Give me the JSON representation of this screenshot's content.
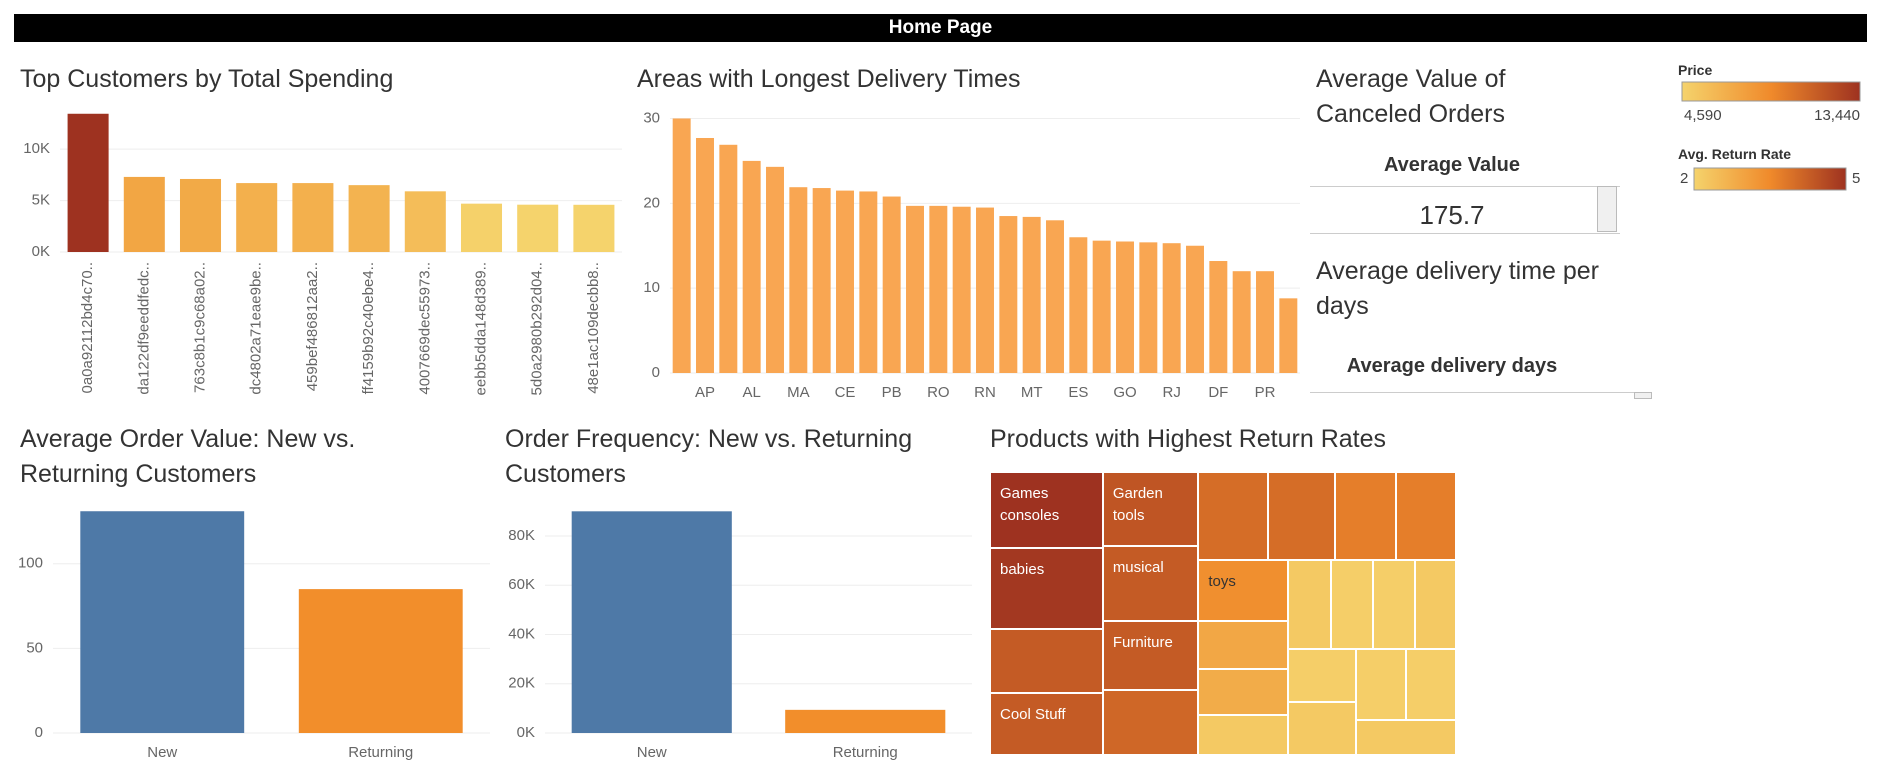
{
  "header": {
    "title": "Home Page"
  },
  "chart_data": [
    {
      "type": "bar",
      "title": "Top Customers by Total Spending",
      "categories": [
        "0a0a92112bd4c70..",
        "da122df9eeddfedc..",
        "763c8b1c9c68a02..",
        "dc4802a71eae9be..",
        "459bef486812aa2..",
        "ff4159b92c40ebe4..",
        "4007669dec55973..",
        "eebb5dda148d389..",
        "5d0a2980b292d04..",
        "48e1ac109decbb8.."
      ],
      "values": [
        13440,
        7300,
        7100,
        6700,
        6700,
        6500,
        5900,
        4700,
        4600,
        4590
      ],
      "ylim": [
        0,
        14000
      ],
      "yticks": [
        {
          "value": 0,
          "label": "0K"
        },
        {
          "value": 5000,
          "label": "5K"
        },
        {
          "value": 10000,
          "label": "10K"
        }
      ],
      "grid": true
    },
    {
      "type": "bar",
      "title": "Areas with Longest Delivery Times",
      "categories": [
        null,
        "AP",
        null,
        "AL",
        null,
        "MA",
        null,
        "CE",
        null,
        "PB",
        null,
        "RO",
        null,
        "RN",
        null,
        "MT",
        null,
        "ES",
        null,
        "GO",
        null,
        "RJ",
        null,
        "DF",
        null,
        "PR",
        null
      ],
      "values": [
        30,
        27.7,
        26.9,
        25,
        24.3,
        21.9,
        21.8,
        21.5,
        21.4,
        20.8,
        19.7,
        19.7,
        19.6,
        19.5,
        18.5,
        18.4,
        18,
        16,
        15.6,
        15.5,
        15.4,
        15.3,
        15,
        13.2,
        12,
        12,
        8.8
      ],
      "color": "#f9a652",
      "ylim": [
        0,
        31
      ],
      "yticks": [
        0,
        10,
        20,
        30
      ],
      "grid": true
    },
    {
      "type": "bar",
      "title": "Average Order Value: New vs. Returning Customers",
      "categories": [
        "New",
        "Returning"
      ],
      "values": [
        131,
        85
      ],
      "colors": [
        "#4e79a7",
        "#f28e2b"
      ],
      "ylim": [
        0,
        140
      ],
      "yticks": [
        0,
        50,
        100
      ],
      "grid": true
    },
    {
      "type": "bar",
      "title": "Order Frequency: New vs. Returning Customers",
      "categories": [
        "New",
        "Returning"
      ],
      "values": [
        90000,
        9400
      ],
      "colors": [
        "#4e79a7",
        "#f28e2b"
      ],
      "ylim": [
        0,
        95000
      ],
      "yticks": [
        {
          "value": 0,
          "label": "0K"
        },
        {
          "value": 20000,
          "label": "20K"
        },
        {
          "value": 40000,
          "label": "40K"
        },
        {
          "value": 60000,
          "label": "60K"
        },
        {
          "value": 80000,
          "label": "80K"
        }
      ],
      "grid": true
    },
    {
      "type": "treemap",
      "title": "Products with Highest Return Rates",
      "labels": [
        "Games consoles",
        "babies",
        null,
        "Cool Stuff",
        "Garden tools",
        "musical",
        "Furniture",
        null,
        null,
        null,
        null,
        null,
        "toys",
        null,
        null,
        null,
        null,
        null,
        null,
        null,
        null,
        null,
        null,
        null,
        null
      ],
      "sizes": [
        60,
        63,
        50,
        49,
        49,
        50,
        46,
        43,
        43,
        41,
        37,
        37,
        38,
        30,
        29,
        25,
        26,
        26,
        26,
        25,
        25,
        25,
        25,
        25,
        24
      ],
      "rates": [
        5,
        4.9,
        4.3,
        4.3,
        4.4,
        4.3,
        4.3,
        4.1,
        4,
        4,
        3.7,
        3.7,
        3.4,
        2.9,
        2.8,
        2.2,
        2.2,
        2.1,
        2.1,
        2.2,
        2.1,
        2.2,
        2.1,
        2.1,
        2.2
      ]
    }
  ],
  "cards": [
    {
      "title": "Average Value of Canceled Orders",
      "label": "Average Value",
      "value": 175.7
    },
    {
      "title": "Average delivery time per days",
      "label": "Average delivery days"
    }
  ],
  "legends": [
    {
      "title": "Price",
      "min": {
        "value": 4590,
        "label": "4,590"
      },
      "max": {
        "value": 13440,
        "label": "13,440"
      },
      "colors": [
        "#f5d36c",
        "#f08a2b",
        "#9e3220"
      ]
    },
    {
      "title": "Avg. Return Rate",
      "min": 2,
      "max": 5,
      "colors": [
        "#f5d36c",
        "#f08a2b",
        "#9e3220"
      ]
    }
  ]
}
